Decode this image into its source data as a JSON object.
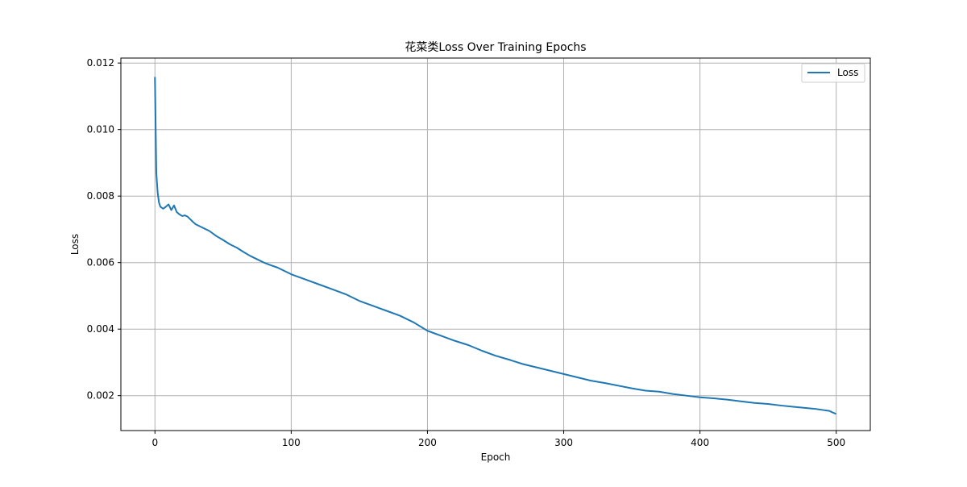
{
  "chart_data": {
    "type": "line",
    "title": "花菜类Loss Over Training Epochs",
    "xlabel": "Epoch",
    "ylabel": "Loss",
    "xlim": [
      -25,
      525
    ],
    "ylim": [
      0.00095,
      0.01215
    ],
    "xticks": [
      0,
      100,
      200,
      300,
      400,
      500
    ],
    "yticks": [
      0.002,
      0.004,
      0.006,
      0.008,
      0.01,
      0.012
    ],
    "ytick_labels": [
      "0.002",
      "0.004",
      "0.006",
      "0.008",
      "0.010",
      "0.012"
    ],
    "grid": true,
    "legend": {
      "placement": "top-right",
      "entries": [
        "Loss"
      ]
    },
    "line_color": "#1f77b4",
    "series": [
      {
        "name": "Loss",
        "x": [
          0,
          1,
          2,
          3,
          4,
          5,
          6,
          8,
          10,
          12,
          14,
          16,
          18,
          20,
          22,
          24,
          26,
          28,
          30,
          35,
          40,
          45,
          50,
          55,
          60,
          65,
          70,
          75,
          80,
          85,
          90,
          95,
          100,
          110,
          120,
          130,
          140,
          150,
          160,
          170,
          180,
          190,
          200,
          210,
          220,
          230,
          240,
          250,
          260,
          270,
          280,
          290,
          300,
          310,
          320,
          330,
          340,
          350,
          360,
          370,
          380,
          390,
          400,
          410,
          420,
          430,
          440,
          450,
          460,
          470,
          480,
          485,
          490,
          495,
          497,
          500
        ],
        "values": [
          0.01158,
          0.0087,
          0.0081,
          0.0078,
          0.00768,
          0.00765,
          0.00762,
          0.00768,
          0.00775,
          0.00758,
          0.00772,
          0.00752,
          0.00745,
          0.0074,
          0.00742,
          0.00738,
          0.0073,
          0.00722,
          0.00715,
          0.00705,
          0.00695,
          0.0068,
          0.00668,
          0.00655,
          0.00645,
          0.00632,
          0.0062,
          0.0061,
          0.006,
          0.00592,
          0.00585,
          0.00575,
          0.00565,
          0.0055,
          0.00535,
          0.0052,
          0.00505,
          0.00485,
          0.0047,
          0.00455,
          0.0044,
          0.0042,
          0.00395,
          0.0038,
          0.00365,
          0.00352,
          0.00335,
          0.0032,
          0.00308,
          0.00295,
          0.00285,
          0.00275,
          0.00265,
          0.00255,
          0.00245,
          0.00238,
          0.0023,
          0.00222,
          0.00215,
          0.00212,
          0.00205,
          0.002,
          0.00195,
          0.00192,
          0.00188,
          0.00183,
          0.00178,
          0.00175,
          0.0017,
          0.00166,
          0.00162,
          0.0016,
          0.00157,
          0.00154,
          0.0015,
          0.00145
        ]
      }
    ]
  }
}
